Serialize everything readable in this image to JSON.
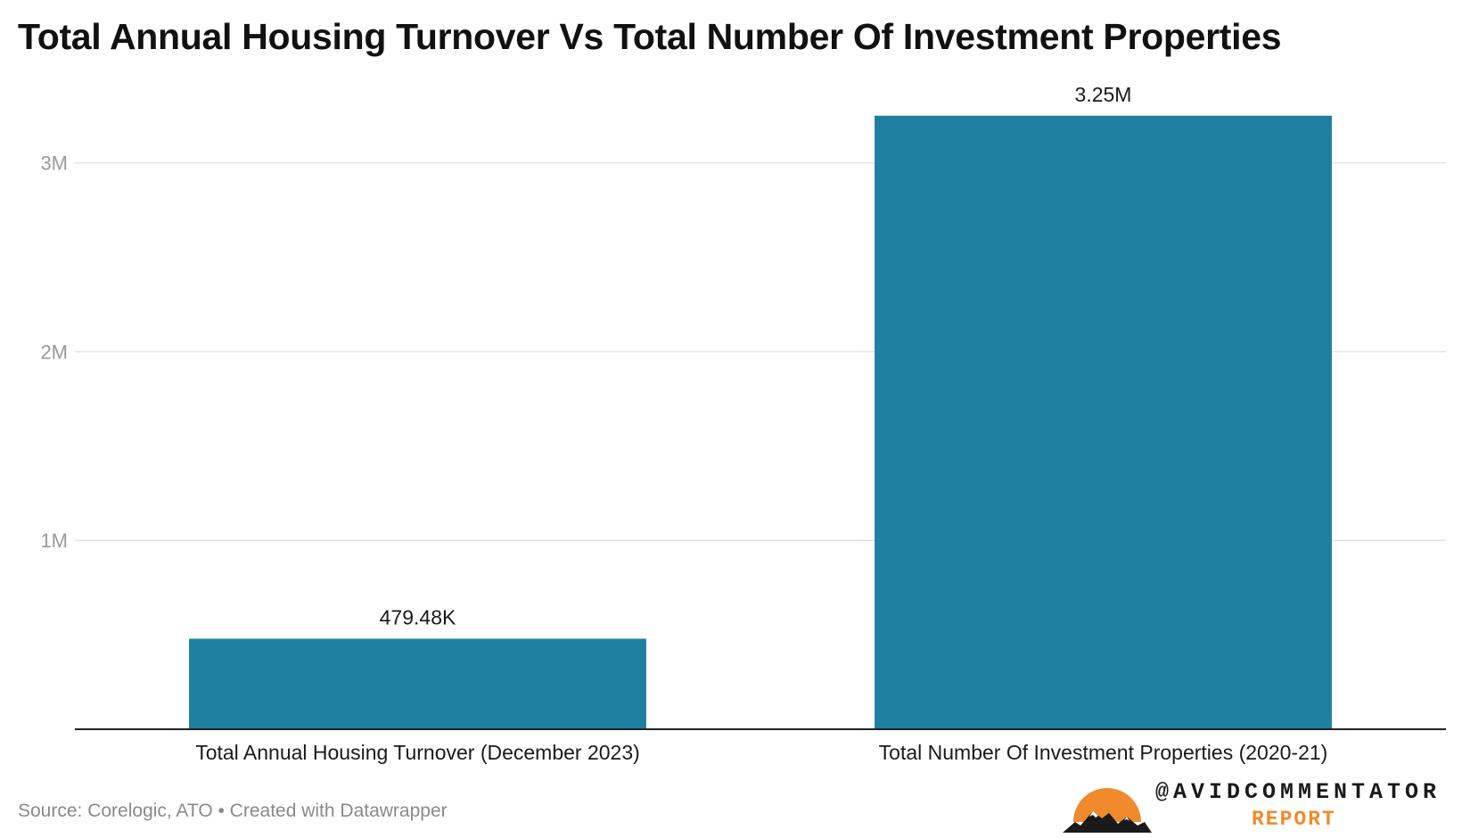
{
  "chart_data": {
    "type": "bar",
    "title": "Total Annual Housing Turnover Vs Total Number Of Investment Properties",
    "categories": [
      "Total Annual Housing Turnover (December 2023)",
      "Total Number Of Investment Properties (2020-21)"
    ],
    "values": [
      479480,
      3250000
    ],
    "value_labels": [
      "479.48K",
      "3.25M"
    ],
    "xlabel": "",
    "ylabel": "",
    "ylim": [
      0,
      3400000
    ],
    "yticks": [
      1000000,
      2000000,
      3000000
    ],
    "ytick_labels": [
      "1M",
      "2M",
      "3M"
    ],
    "grid": true,
    "legend": "none",
    "colors": {
      "bar": "#1f7fa0",
      "gridline": "#e3e3e3",
      "baseline": "#222222",
      "tick_label": "#9a9a9a"
    }
  },
  "source": "Source: Corelogic, ATO • Created with Datawrapper",
  "brand": {
    "handle": "@AVIDCOMMENTATOR",
    "sub": "REPORT",
    "logo_icon": "sun-mountains-logo",
    "colors": {
      "sun": "#f08a2c",
      "mountains": "#1a1a1a"
    }
  }
}
